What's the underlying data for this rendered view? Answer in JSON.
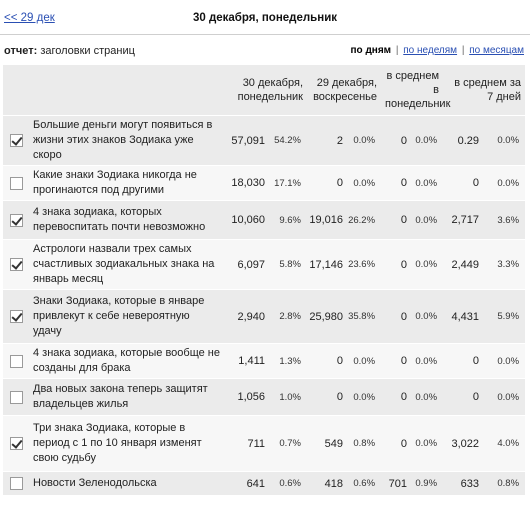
{
  "nav": {
    "prev_link": "<< 29 дек",
    "title": "30 декабря, понедельник"
  },
  "report": {
    "label_prefix": "отчет:",
    "label_value": "заголовки страниц",
    "periods": {
      "by_day": "по дням",
      "by_week": "по неделям",
      "by_month": "по месяцам",
      "sep": "|"
    }
  },
  "columns": {
    "c1": "30 декабря, понедельник",
    "c2": "29 декабря, воскресенье",
    "c3": "в среднем в понедельник",
    "c4": "в среднем за 7 дней"
  },
  "rows": [
    {
      "checked": true,
      "title": "Большие деньги могут появиться в жизни этих знаков Зодиака уже скоро",
      "v1": "57,091",
      "p1": "54.2%",
      "v2": "2",
      "p2": "0.0%",
      "v3": "0",
      "p3": "0.0%",
      "v4": "0.29",
      "p4": "0.0%"
    },
    {
      "checked": false,
      "title": "Какие знаки Зодиака никогда не прогинаются под другими",
      "v1": "18,030",
      "p1": "17.1%",
      "v2": "0",
      "p2": "0.0%",
      "v3": "0",
      "p3": "0.0%",
      "v4": "0",
      "p4": "0.0%"
    },
    {
      "checked": true,
      "title": "4 знака зодиака, которых перевоспитать почти невозможно",
      "v1": "10,060",
      "p1": "9.6%",
      "v2": "19,016",
      "p2": "26.2%",
      "v3": "0",
      "p3": "0.0%",
      "v4": "2,717",
      "p4": "3.6%"
    },
    {
      "checked": true,
      "title": "Астрологи назвали трех самых счастливых зодиакальных знака на январь месяц",
      "v1": "6,097",
      "p1": "5.8%",
      "v2": "17,146",
      "p2": "23.6%",
      "v3": "0",
      "p3": "0.0%",
      "v4": "2,449",
      "p4": "3.3%"
    },
    {
      "checked": true,
      "title": "Знаки Зодиака, которые в январе привлекут к себе невероятную удачу",
      "v1": "2,940",
      "p1": "2.8%",
      "v2": "25,980",
      "p2": "35.8%",
      "v3": "0",
      "p3": "0.0%",
      "v4": "4,431",
      "p4": "5.9%"
    },
    {
      "checked": false,
      "title": "4 знака зодиака, которые вообще не созданы для брака",
      "v1": "1,411",
      "p1": "1.3%",
      "v2": "0",
      "p2": "0.0%",
      "v3": "0",
      "p3": "0.0%",
      "v4": "0",
      "p4": "0.0%"
    },
    {
      "checked": false,
      "title": "Два новых закона теперь защитят владельцев жилья",
      "v1": "1,056",
      "p1": "1.0%",
      "v2": "0",
      "p2": "0.0%",
      "v3": "0",
      "p3": "0.0%",
      "v4": "0",
      "p4": "0.0%"
    },
    {
      "checked": true,
      "title": "Три знака Зодиака, которые в период с 1 по 10 января изменят свою судьбу",
      "v1": "711",
      "p1": "0.7%",
      "v2": "549",
      "p2": "0.8%",
      "v3": "0",
      "p3": "0.0%",
      "v4": "3,022",
      "p4": "4.0%"
    },
    {
      "checked": false,
      "title": "Новости Зеленодольска",
      "v1": "641",
      "p1": "0.6%",
      "v2": "418",
      "p2": "0.6%",
      "v3": "701",
      "p3": "0.9%",
      "v4": "633",
      "p4": "0.8%"
    }
  ]
}
